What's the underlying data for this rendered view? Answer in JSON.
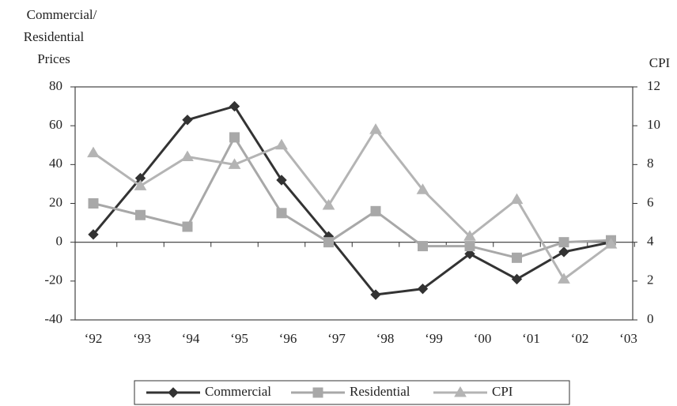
{
  "chart_data": {
    "type": "line",
    "ylabel": [
      "Commercial/",
      "Residential",
      "Prices"
    ],
    "y2label": "CPI",
    "categories": [
      "‘92",
      "‘93",
      "‘94",
      "‘95",
      "‘96",
      "‘97",
      "‘98",
      "‘99",
      "‘00",
      "‘01",
      "‘02",
      "‘03"
    ],
    "ylim": [
      -40,
      80
    ],
    "yticks": [
      -40,
      -20,
      0,
      20,
      40,
      60,
      80
    ],
    "y2lim": [
      0,
      12
    ],
    "y2ticks": [
      0,
      2,
      4,
      6,
      8,
      10,
      12
    ],
    "series": [
      {
        "name": "Commercial",
        "color": "#333333",
        "marker": "diamond",
        "values": [
          4,
          33,
          63,
          70,
          32,
          3,
          -27,
          -24,
          -6,
          -19,
          -5,
          0
        ]
      },
      {
        "name": "Residential",
        "color": "#a8a8a8",
        "marker": "square",
        "values": [
          20,
          14,
          8,
          54,
          15,
          0,
          16,
          -2,
          -2,
          -8,
          0,
          1
        ]
      },
      {
        "name": "CPI",
        "color": "#b4b4b4",
        "marker": "triangle",
        "axis": "y2",
        "values": [
          8.6,
          6.9,
          8.4,
          8.0,
          9.0,
          5.9,
          9.8,
          6.7,
          4.3,
          6.2,
          2.1,
          3.9
        ]
      }
    ],
    "legend": "bottom"
  }
}
